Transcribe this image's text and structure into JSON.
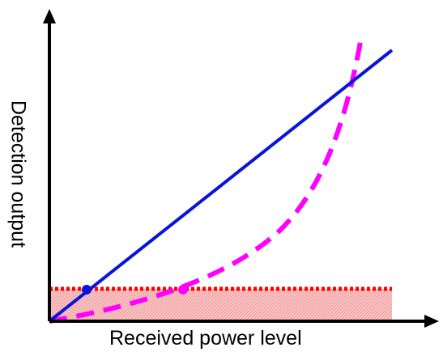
{
  "labels": {
    "x_axis": "Received power level",
    "y_axis": "Detection output"
  },
  "colors": {
    "axes": "#000000",
    "linear_line": "#0a14d9",
    "curve": "#ff00ff",
    "threshold": "#ff0000",
    "region_fill": "#f7b7b7",
    "intersection_point": "#0a14d9"
  }
}
